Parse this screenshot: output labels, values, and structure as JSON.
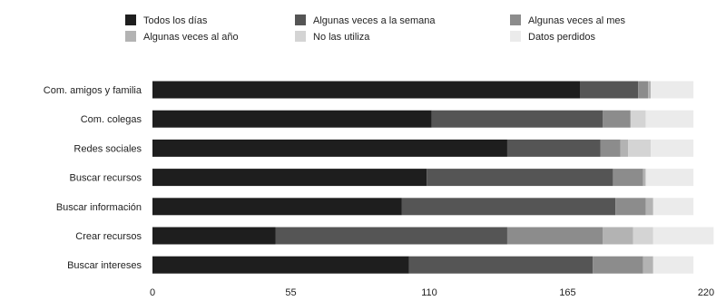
{
  "chart_data": {
    "type": "bar",
    "orientation": "horizontal",
    "stacked": true,
    "title": "",
    "xlabel": "",
    "ylabel": "",
    "xlim": [
      0,
      220
    ],
    "x_ticks": [
      "0",
      "55",
      "110",
      "165",
      "220"
    ],
    "grid": false,
    "legend_position": "top",
    "categories": [
      "Com. amigos y familia",
      "Com. colegas",
      "Redes sociales",
      "Buscar recursos",
      "Buscar información",
      "Crear recursos",
      "Buscar intereses"
    ],
    "series": [
      {
        "name": "Todos los días",
        "color": "#1e1e1e",
        "values": [
          170,
          111,
          141,
          109,
          99,
          49,
          102
        ]
      },
      {
        "name": "Algunas veces a la semana",
        "color": "#555555",
        "values": [
          23,
          68,
          37,
          74,
          85,
          92,
          73
        ]
      },
      {
        "name": "Algunas veces al mes",
        "color": "#8c8c8c",
        "values": [
          4,
          11,
          8,
          12,
          12,
          38,
          20
        ]
      },
      {
        "name": "Algunas veces al año",
        "color": "#b3b3b3",
        "values": [
          1,
          0,
          3,
          1,
          3,
          12,
          4
        ]
      },
      {
        "name": "No las utiliza",
        "color": "#d4d4d4",
        "values": [
          0,
          6,
          9,
          0,
          0,
          8,
          0
        ]
      },
      {
        "name": "Datos perdidos",
        "color": "#ebebeb",
        "values": [
          17,
          19,
          17,
          19,
          16,
          24,
          16
        ]
      }
    ]
  }
}
